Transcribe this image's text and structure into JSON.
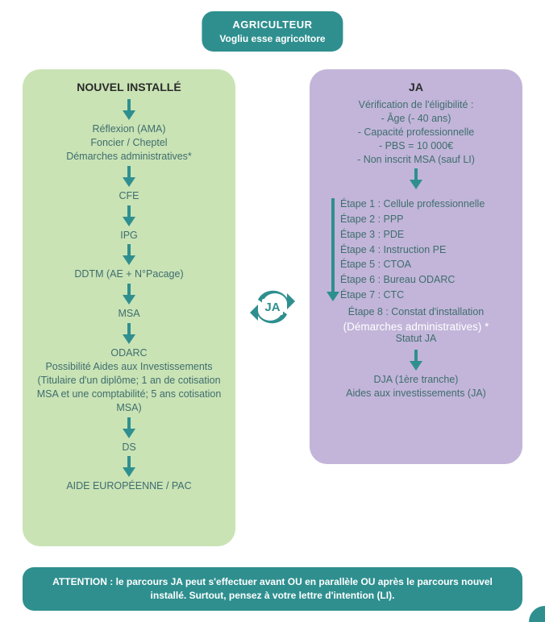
{
  "colors": {
    "teal": "#2f8f8f",
    "arrow": "#2f8f8f",
    "panel_green": "#c9e3b5",
    "panel_purple": "#c2b5d9",
    "text_step": "#3f6d6d",
    "white": "#ffffff"
  },
  "type": "flowchart",
  "badge": {
    "line1": "AGRICULTEUR",
    "line2": "Vogliu esse agricoltore"
  },
  "left": {
    "title": "NOUVEL INSTALLÉ",
    "steps": [
      "Réflexion (AMA)\nFoncier / Cheptel\nDémarches administratives*",
      "CFE",
      "IPG",
      "DDTM (AE + N°Pacage)",
      "MSA",
      "ODARC\nPossibilité Aides aux Investissements (Titulaire d'un diplôme; 1 an de cotisation MSA et une comptabilité; 5 ans cotisation MSA)",
      "DS",
      "AIDE EUROPÉENNE / PAC"
    ]
  },
  "right": {
    "title": "JA",
    "eligibility_title": "Vérification de l'éligibilité :",
    "eligibility": [
      "- Âge (- 40 ans)",
      "- Capacité professionnelle",
      "- PBS = 10 000€",
      "- Non inscrit MSA (sauf LI)"
    ],
    "etapes": [
      "Étape 1 : Cellule professionnelle",
      "Étape 2 : PPP",
      "Étape 3 : PDE",
      "Étape 4 : Instruction PE",
      "Étape 5 : CTOA",
      "Étape 6 : Bureau ODARC",
      "Étape 7 : CTC"
    ],
    "etape8": "Étape 8 : Constat d'installation",
    "dem_admin": "(Démarches administratives) *",
    "statut": "Statut JA",
    "bottom1": "DJA (1ère tranche)",
    "bottom2": "Aides aux investissements (JA)"
  },
  "cycle_label": "JA",
  "attention": "ATTENTION : le parcours JA peut s'effectuer avant OU en parallèle OU après le parcours nouvel installé. Surtout, pensez à votre lettre d'intention (LI)."
}
